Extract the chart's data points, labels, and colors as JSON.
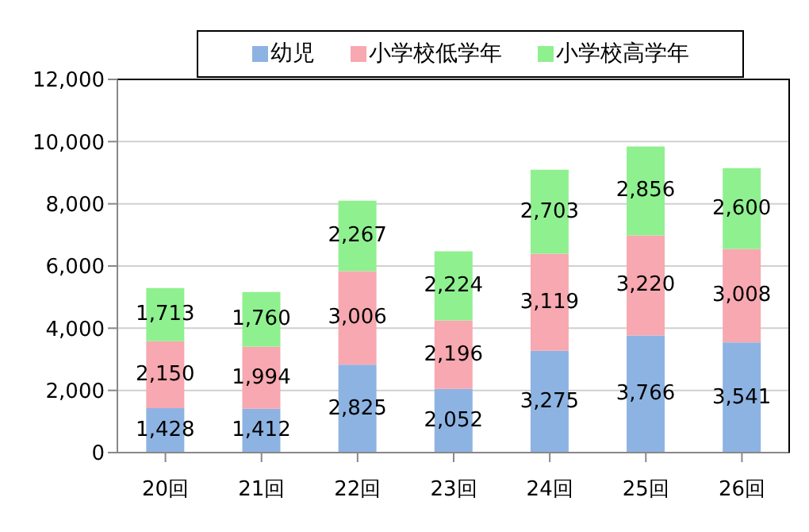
{
  "chart_data": {
    "type": "bar",
    "stacked": true,
    "categories": [
      "20回",
      "21回",
      "22回",
      "23回",
      "24回",
      "25回",
      "26回"
    ],
    "series": [
      {
        "name": "幼児",
        "color": "#8db3e2",
        "values": [
          1428,
          1412,
          2825,
          2052,
          3275,
          3766,
          3541
        ],
        "value_labels": [
          "1,428",
          "1,412",
          "2,825",
          "2,052",
          "3,275",
          "3,766",
          "3,541"
        ]
      },
      {
        "name": "小学校低学年",
        "color": "#f7a8b0",
        "values": [
          2150,
          1994,
          3006,
          2196,
          3119,
          3220,
          3008
        ],
        "value_labels": [
          "2,150",
          "1,994",
          "3,006",
          "2,196",
          "3,119",
          "3,220",
          "3,008"
        ]
      },
      {
        "name": "小学校高学年",
        "color": "#8ff08f",
        "values": [
          1713,
          1760,
          2267,
          2224,
          2703,
          2856,
          2600
        ],
        "value_labels": [
          "1,713",
          "1,760",
          "2,267",
          "2,224",
          "2,703",
          "2,856",
          "2,600"
        ]
      }
    ],
    "ylim": [
      0,
      12000
    ],
    "yticks": [
      0,
      {
        "value": 2000,
        "label": "2,000"
      },
      {
        "value": 4000,
        "label": "4,000"
      },
      {
        "value": 6000,
        "label": "6,000"
      },
      {
        "value": 8000,
        "label": "8,000"
      },
      {
        "value": 10000,
        "label": "10,000"
      },
      {
        "value": 12000,
        "label": "12,000"
      }
    ],
    "grid": "y",
    "legend": "top"
  }
}
